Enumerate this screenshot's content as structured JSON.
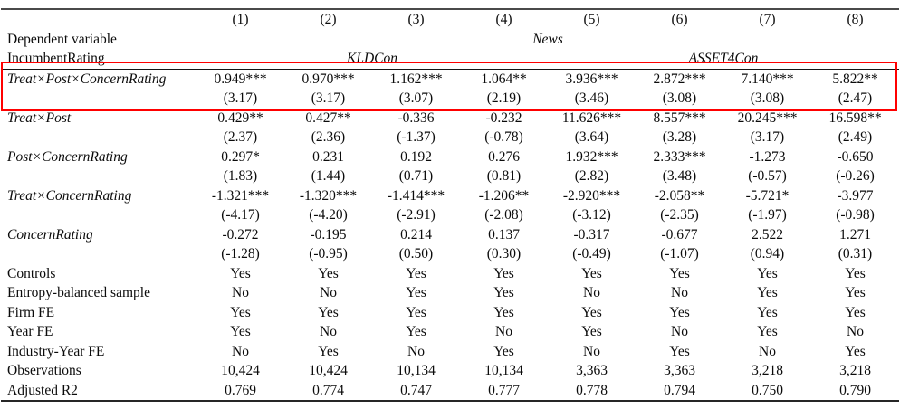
{
  "table": {
    "columns": [
      "(1)",
      "(2)",
      "(3)",
      "(4)",
      "(5)",
      "(6)",
      "(7)",
      "(8)"
    ],
    "dependent_variable_row": {
      "label": "Dependent variable",
      "value": "News"
    },
    "incumbent_rating_row": {
      "label": "IncumbentRating",
      "groups": [
        {
          "label": "KLDCon",
          "span": 4
        },
        {
          "label": "ASSET4Con",
          "span": 4
        }
      ]
    },
    "coefficient_rows": [
      {
        "label": "Treat×Post×ConcernRating",
        "highlighted": true,
        "coefficients": [
          "0.949***",
          "0.970***",
          "1.162***",
          "1.064**",
          "3.936***",
          "2.872***",
          "7.140***",
          "5.822**"
        ],
        "t_stats": [
          "(3.17)",
          "(3.17)",
          "(3.07)",
          "(2.19)",
          "(3.46)",
          "(3.08)",
          "(3.08)",
          "(2.47)"
        ]
      },
      {
        "label": "Treat×Post",
        "highlighted": false,
        "coefficients": [
          "0.429**",
          "0.427**",
          "-0.336",
          "-0.232",
          "11.626***",
          "8.557***",
          "20.245***",
          "16.598**"
        ],
        "t_stats": [
          "(2.37)",
          "(2.36)",
          "(-1.37)",
          "(-0.78)",
          "(3.64)",
          "(3.28)",
          "(3.17)",
          "(2.49)"
        ]
      },
      {
        "label": "Post×ConcernRating",
        "highlighted": false,
        "coefficients": [
          "0.297*",
          "0.231",
          "0.192",
          "0.276",
          "1.932***",
          "2.333***",
          "-1.273",
          "-0.650"
        ],
        "t_stats": [
          "(1.83)",
          "(1.44)",
          "(0.71)",
          "(0.81)",
          "(2.82)",
          "(3.48)",
          "(-0.57)",
          "(-0.26)"
        ]
      },
      {
        "label": "Treat×ConcernRating",
        "highlighted": false,
        "coefficients": [
          "-1.321***",
          "-1.320***",
          "-1.414***",
          "-1.206**",
          "-2.920***",
          "-2.058**",
          "-5.721*",
          "-3.977"
        ],
        "t_stats": [
          "(-4.17)",
          "(-4.20)",
          "(-2.91)",
          "(-2.08)",
          "(-3.12)",
          "(-2.35)",
          "(-1.97)",
          "(-0.98)"
        ]
      },
      {
        "label": "ConcernRating",
        "highlighted": false,
        "coefficients": [
          "-0.272",
          "-0.195",
          "0.214",
          "0.137",
          "-0.317",
          "-0.677",
          "2.522",
          "1.271"
        ],
        "t_stats": [
          "(-1.28)",
          "(-0.95)",
          "(0.50)",
          "(0.30)",
          "(-0.49)",
          "(-1.07)",
          "(0.94)",
          "(0.31)"
        ]
      }
    ],
    "spec_rows": [
      {
        "label": "Controls",
        "values": [
          "Yes",
          "Yes",
          "Yes",
          "Yes",
          "Yes",
          "Yes",
          "Yes",
          "Yes"
        ]
      },
      {
        "label": "Entropy-balanced sample",
        "values": [
          "No",
          "No",
          "Yes",
          "Yes",
          "No",
          "No",
          "Yes",
          "Yes"
        ]
      },
      {
        "label": "Firm FE",
        "values": [
          "Yes",
          "Yes",
          "Yes",
          "Yes",
          "Yes",
          "Yes",
          "Yes",
          "Yes"
        ]
      },
      {
        "label": "Year FE",
        "values": [
          "Yes",
          "No",
          "Yes",
          "No",
          "Yes",
          "No",
          "Yes",
          "No"
        ]
      },
      {
        "label": "Industry-Year FE",
        "values": [
          "No",
          "Yes",
          "No",
          "Yes",
          "No",
          "Yes",
          "No",
          "Yes"
        ]
      },
      {
        "label": "Observations",
        "values": [
          "10,424",
          "10,424",
          "10,134",
          "10,134",
          "3,363",
          "3,363",
          "3,218",
          "3,218"
        ]
      },
      {
        "label": "Adjusted R2",
        "values": [
          "0.769",
          "0.774",
          "0.747",
          "0.777",
          "0.778",
          "0.794",
          "0.750",
          "0.790"
        ]
      }
    ],
    "highlight_box_color": "#ff0000"
  }
}
